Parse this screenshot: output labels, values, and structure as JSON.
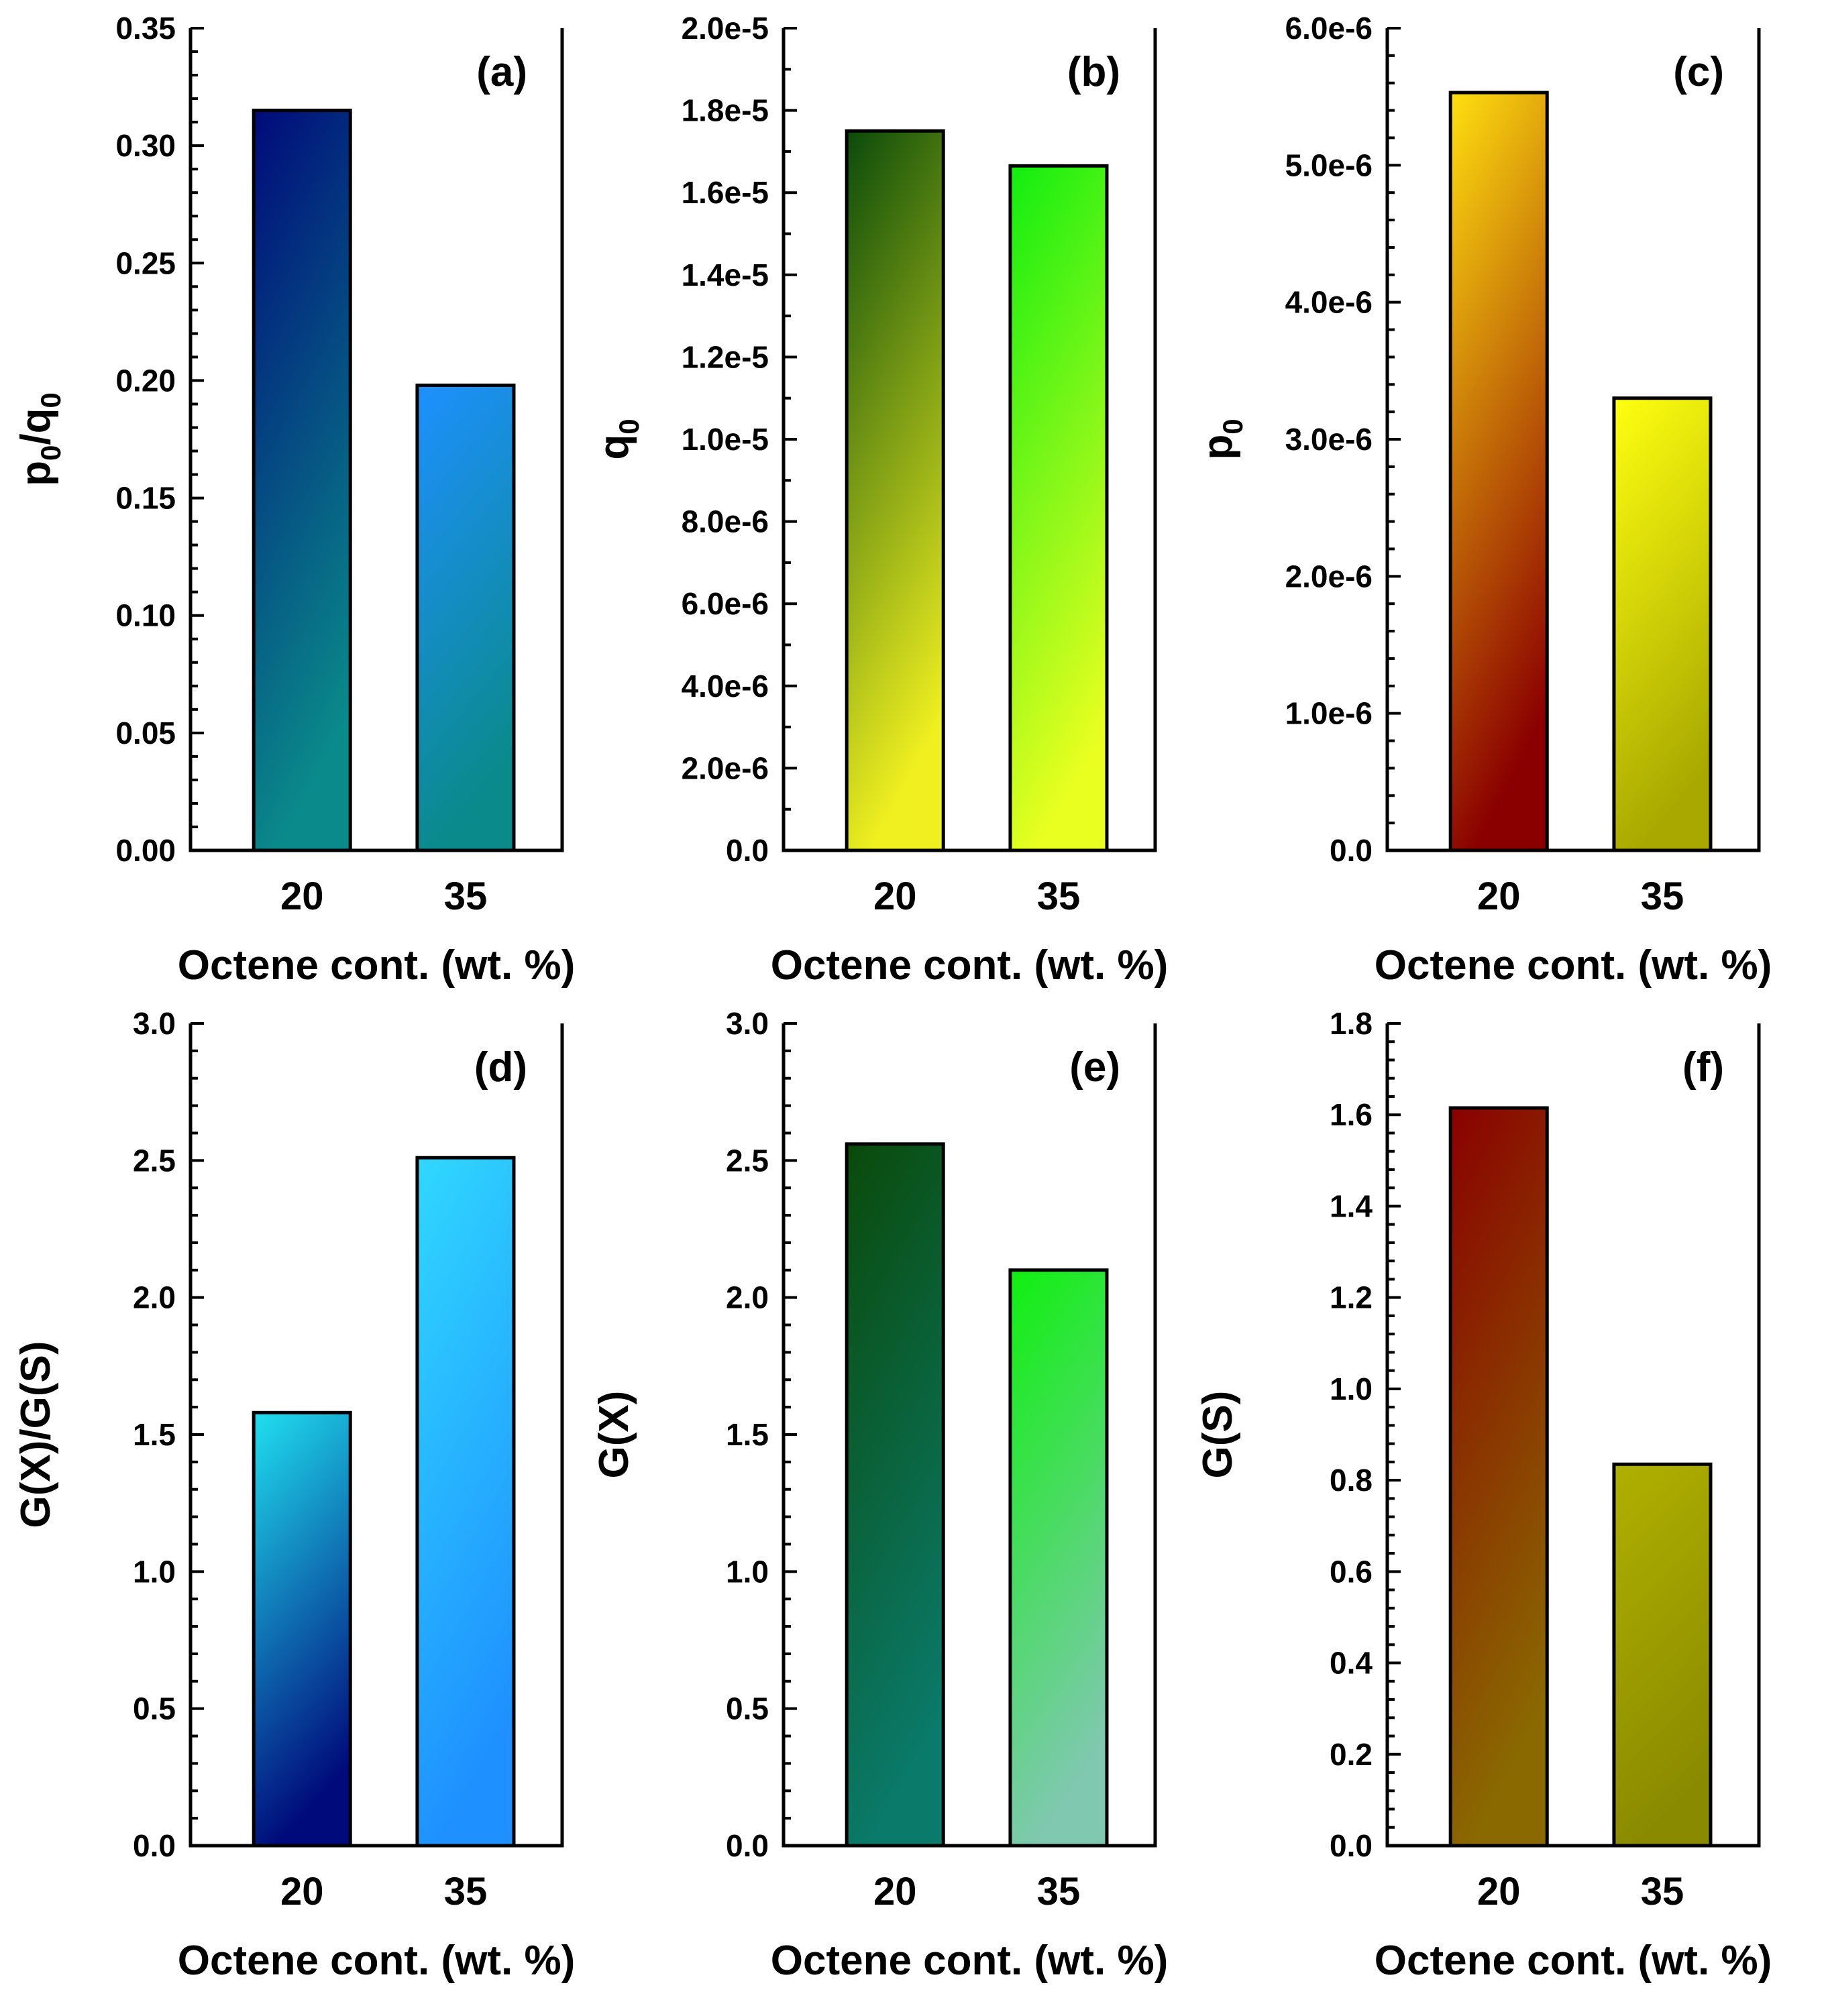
{
  "figure": {
    "description_free": true
  },
  "chart_data": [
    {
      "type": "bar",
      "panel": "(a)",
      "categories": [
        "20",
        "35"
      ],
      "values": [
        0.315,
        0.198
      ],
      "xlabel": "Octene cont. (wt. %)",
      "ylabel_main": "p",
      "ylabel_sub1": "0",
      "ylabel_mid": "/q",
      "ylabel_sub2": "0",
      "ylim": [
        0,
        0.35
      ],
      "yticks": [
        0.0,
        0.05,
        0.1,
        0.15,
        0.2,
        0.25,
        0.3,
        0.35
      ],
      "ytick_labels": [
        "0.00",
        "0.05",
        "0.10",
        "0.15",
        "0.20",
        "0.25",
        "0.30",
        "0.35"
      ],
      "minor_per_major": 4,
      "bar_colors": [
        [
          "#000a7a",
          "#0a8a8a"
        ],
        [
          "#1e90ff",
          "#0a8a8a"
        ]
      ]
    },
    {
      "type": "bar",
      "panel": "(b)",
      "categories": [
        "20",
        "35"
      ],
      "values": [
        1.75e-05,
        1.665e-05
      ],
      "xlabel": "Octene cont. (wt. %)",
      "ylabel_main": "q",
      "ylabel_sub1": "0",
      "ylim": [
        0,
        2e-05
      ],
      "yticks": [
        0,
        2e-06,
        4e-06,
        6e-06,
        8e-06,
        1e-05,
        1.2e-05,
        1.4e-05,
        1.6e-05,
        1.8e-05,
        2e-05
      ],
      "ytick_labels": [
        "0.0",
        "2.0e-6",
        "4.0e-6",
        "6.0e-6",
        "8.0e-6",
        "1.0e-5",
        "1.2e-5",
        "1.4e-5",
        "1.6e-5",
        "1.8e-5",
        "2.0e-5"
      ],
      "minor_per_major": 1,
      "bar_colors": [
        [
          "#0a4a0a",
          "#f0f020"
        ],
        [
          "#10ee10",
          "#e8ff20"
        ]
      ]
    },
    {
      "type": "bar",
      "panel": "(c)",
      "categories": [
        "20",
        "35"
      ],
      "values": [
        5.53e-06,
        3.3e-06
      ],
      "xlabel": "Octene cont. (wt. %)",
      "ylabel_main": "p",
      "ylabel_sub1": "0",
      "ylim": [
        0,
        6e-06
      ],
      "yticks": [
        0,
        1e-06,
        2e-06,
        3e-06,
        4e-06,
        5e-06,
        6e-06
      ],
      "ytick_labels": [
        "0.0",
        "1.0e-6",
        "2.0e-6",
        "3.0e-6",
        "4.0e-6",
        "5.0e-6",
        "6.0e-6"
      ],
      "minor_per_major": 4,
      "bar_colors": [
        [
          "#ffe010",
          "#8a0000"
        ],
        [
          "#ffff10",
          "#a8a800"
        ]
      ]
    },
    {
      "type": "bar",
      "panel": "(d)",
      "categories": [
        "20",
        "35"
      ],
      "values": [
        1.58,
        2.51
      ],
      "xlabel": "Octene cont. (wt. %)",
      "ylabel_main": "G(X)/G(S)",
      "ylim": [
        0,
        3.0
      ],
      "yticks": [
        0,
        0.5,
        1.0,
        1.5,
        2.0,
        2.5,
        3.0
      ],
      "ytick_labels": [
        "0.0",
        "0.5",
        "1.0",
        "1.5",
        "2.0",
        "2.5",
        "3.0"
      ],
      "minor_per_major": 4,
      "bar_colors": [
        [
          "#20e0f0",
          "#000a7a"
        ],
        [
          "#30d8ff",
          "#1e90ff"
        ]
      ]
    },
    {
      "type": "bar",
      "panel": "(e)",
      "categories": [
        "20",
        "35"
      ],
      "values": [
        2.56,
        2.1
      ],
      "xlabel": "Octene cont. (wt. %)",
      "ylabel_main": "G(X)",
      "ylim": [
        0,
        3.0
      ],
      "yticks": [
        0,
        0.5,
        1.0,
        1.5,
        2.0,
        2.5,
        3.0
      ],
      "ytick_labels": [
        "0.0",
        "0.5",
        "1.0",
        "1.5",
        "2.0",
        "2.5",
        "3.0"
      ],
      "minor_per_major": 4,
      "bar_colors": [
        [
          "#0a4a0a",
          "#0a7a6a"
        ],
        [
          "#10f010",
          "#80c8b0"
        ]
      ]
    },
    {
      "type": "bar",
      "panel": "(f)",
      "categories": [
        "20",
        "35"
      ],
      "values": [
        1.615,
        0.835
      ],
      "xlabel": "Octene cont. (wt. %)",
      "ylabel_main": "G(S)",
      "ylim": [
        0,
        1.8
      ],
      "yticks": [
        0,
        0.2,
        0.4,
        0.6,
        0.8,
        1.0,
        1.2,
        1.4,
        1.6,
        1.8
      ],
      "ytick_labels": [
        "0.0",
        "0.2",
        "0.4",
        "0.6",
        "0.8",
        "1.0",
        "1.2",
        "1.4",
        "1.6",
        "1.8"
      ],
      "minor_per_major": 4,
      "bar_colors": [
        [
          "#8a0000",
          "#8a6a00"
        ],
        [
          "#b0b000",
          "#8a8a00"
        ]
      ]
    }
  ]
}
